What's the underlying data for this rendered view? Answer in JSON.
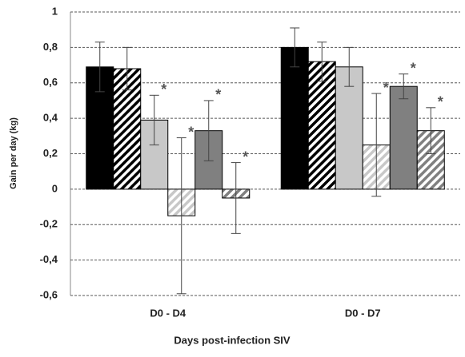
{
  "chart_data": {
    "type": "bar",
    "xlabel": "Days post-infection SIV",
    "ylabel": "Gain per day (kg)",
    "categories": [
      "D0 - D4",
      "D0 - D7"
    ],
    "series": [
      {
        "color": "#000000",
        "hatch": false,
        "values": [
          0.69,
          0.8
        ],
        "errors": [
          0.14,
          0.11
        ],
        "labels": [
          null,
          null
        ]
      },
      {
        "color": "#000000",
        "hatch": true,
        "values": [
          0.68,
          0.72
        ],
        "errors": [
          0.12,
          0.11
        ],
        "labels": [
          null,
          null
        ]
      },
      {
        "color": "#c8c8c8",
        "hatch": false,
        "values": [
          0.39,
          0.69
        ],
        "errors": [
          0.14,
          0.11
        ],
        "labels": [
          "*",
          null
        ]
      },
      {
        "color": "#c8c8c8",
        "hatch": true,
        "values": [
          -0.15,
          0.25
        ],
        "errors": [
          0.44,
          0.29
        ],
        "labels": [
          "*",
          "*"
        ]
      },
      {
        "color": "#808080",
        "hatch": false,
        "values": [
          0.33,
          0.58
        ],
        "errors": [
          0.17,
          0.07
        ],
        "labels": [
          "*",
          "*"
        ]
      },
      {
        "color": "#808080",
        "hatch": true,
        "values": [
          -0.05,
          0.33
        ],
        "errors": [
          0.2,
          0.13
        ],
        "labels": [
          "*",
          "*"
        ]
      }
    ],
    "ylim": [
      -0.6,
      1
    ],
    "yticks": [
      {
        "value": -0.6,
        "label": "-0,6"
      },
      {
        "value": -0.4,
        "label": "-0,4"
      },
      {
        "value": -0.2,
        "label": "-0,2"
      },
      0,
      {
        "value": 0.2,
        "label": "0,2"
      },
      {
        "value": 0.4,
        "label": "0,4"
      },
      {
        "value": 0.6,
        "label": "0,6"
      },
      {
        "value": 0.8,
        "label": "0,8"
      },
      1
    ],
    "grid": true
  }
}
